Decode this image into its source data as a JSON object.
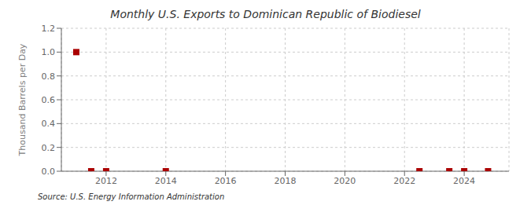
{
  "chart_data": {
    "type": "scatter",
    "title": "Monthly U.S. Exports to Dominican Republic of Biodiesel",
    "ylabel": "Thousand Barrels per Day",
    "annotations": [
      "Source: U.S. Energy Information Administration"
    ],
    "x": [
      2011.0,
      2011.5,
      2012.0,
      2014.0,
      2022.5,
      2023.5,
      2024.0,
      2024.8
    ],
    "values": [
      1.0,
      0.0,
      0.0,
      0.0,
      0.0,
      0.0,
      0.0,
      0.0
    ],
    "color": "#aa0000",
    "marker": "square",
    "grid": true,
    "xlim": [
      2010.5,
      2025.5
    ],
    "ylim": [
      0.0,
      1.2
    ],
    "xticks": [
      2012,
      2014,
      2016,
      2018,
      2020,
      2022,
      2024
    ],
    "yticks": [
      {
        "value": 0.0,
        "label": "0.0"
      },
      0.2,
      0.4,
      0.6,
      0.8,
      {
        "value": 1.0,
        "label": "1.0"
      },
      1.2
    ]
  }
}
